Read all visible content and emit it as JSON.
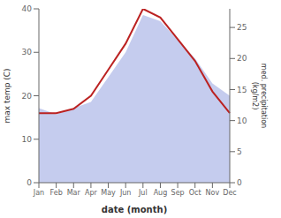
{
  "chart_data": {
    "type": "line",
    "categories": [
      "Jan",
      "Feb",
      "Mar",
      "Apr",
      "May",
      "Jun",
      "Jul",
      "Aug",
      "Sep",
      "Oct",
      "Nov",
      "Dec"
    ],
    "series": [
      {
        "type": "area",
        "color": "#c5ccee",
        "axis": "y2",
        "values": [
          12,
          11,
          12,
          13,
          17,
          21,
          27,
          26,
          23,
          20,
          16,
          14
        ]
      },
      {
        "type": "line",
        "color": "#bb2222",
        "values": [
          16,
          16,
          17,
          20,
          26,
          32,
          40,
          38,
          33,
          28,
          21,
          16
        ]
      }
    ],
    "xlabel": "date (month)",
    "ylabel": "max temp (C)",
    "y2label": "med. precipitation\n(kg/m2)",
    "ylim": [
      0,
      40
    ],
    "yticks": [
      0,
      10,
      20,
      30,
      40
    ],
    "y2lim": [
      0,
      28
    ],
    "y2ticks": [
      0,
      5,
      10,
      15,
      20,
      25
    ]
  }
}
